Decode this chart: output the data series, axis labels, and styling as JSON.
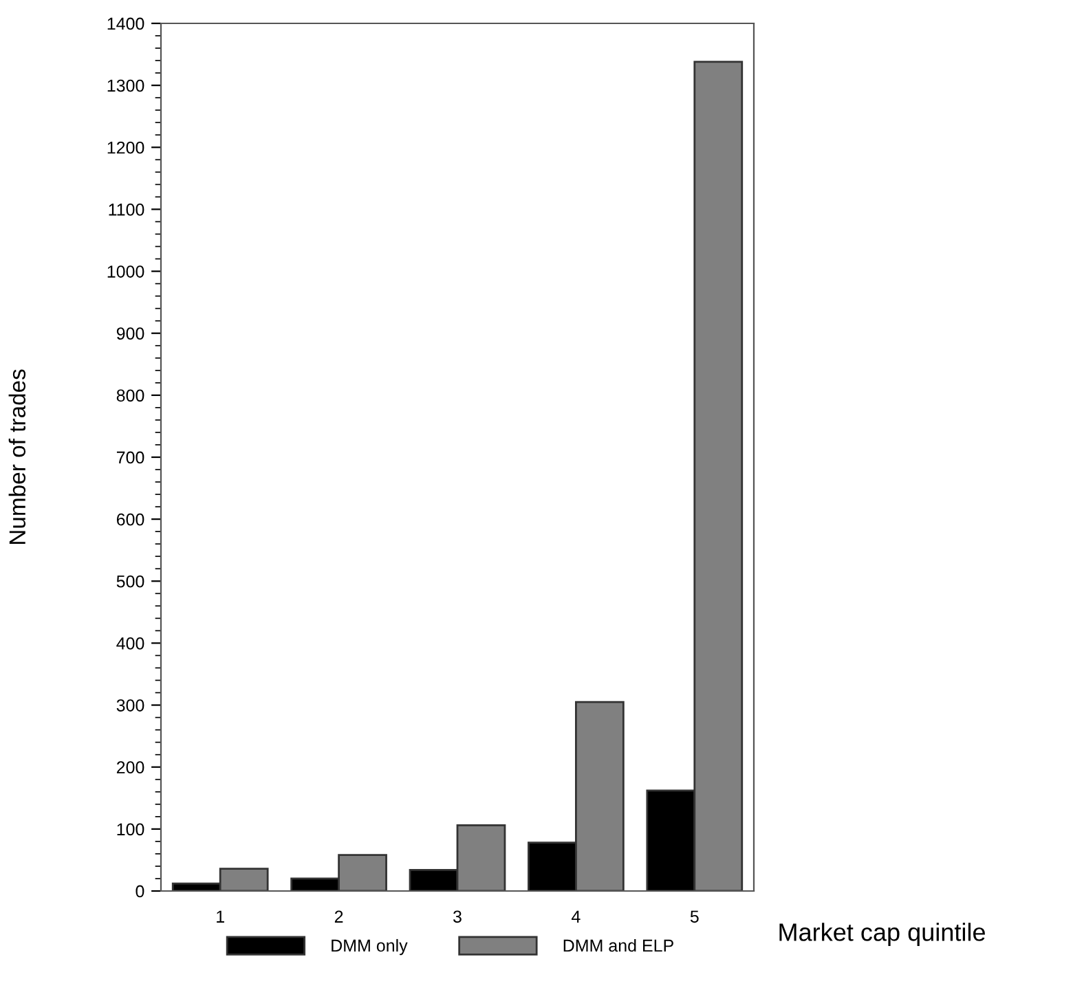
{
  "chart_data": {
    "type": "bar",
    "xlabel": "Market cap quintile",
    "ylabel": "Number of trades",
    "categories": [
      "1",
      "2",
      "3",
      "4",
      "5"
    ],
    "series": [
      {
        "name": "DMM only",
        "color": "#000000",
        "values": [
          12,
          20,
          34,
          78,
          162
        ]
      },
      {
        "name": "DMM and ELP",
        "color": "#808080",
        "values": [
          36,
          58,
          106,
          305,
          1338
        ]
      }
    ],
    "ylim": [
      0,
      1400
    ],
    "yticks": [
      0,
      100,
      200,
      300,
      400,
      500,
      600,
      700,
      800,
      900,
      1000,
      1100,
      1200,
      1300,
      1400
    ],
    "grid": false,
    "legend": "bottom"
  }
}
